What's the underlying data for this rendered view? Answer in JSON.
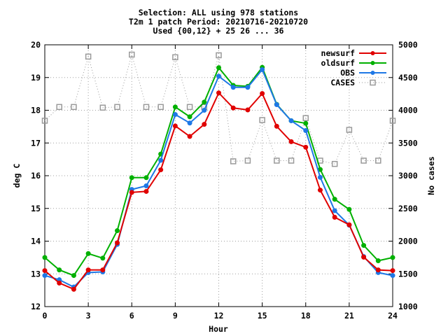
{
  "chart_data": {
    "type": "line",
    "title_lines": [
      "Selection: ALL using   978 stations",
      "T2m 1 patch   Period: 20210716-20210720",
      "Used {00,12} + 25 26 ... 36"
    ],
    "xlabel": "Hour",
    "ylabel": "deg C",
    "y2label": "No cases",
    "xlim": [
      0,
      24
    ],
    "ylim": [
      12,
      20
    ],
    "y2lim": [
      1000,
      5000
    ],
    "xticks": [
      "0",
      "3",
      "6",
      "9",
      "12",
      "15",
      "18",
      "21",
      "24"
    ],
    "yticks": [
      "12",
      "13",
      "14",
      "15",
      "16",
      "17",
      "18",
      "19",
      "20"
    ],
    "y2ticks": [
      "1000",
      "1500",
      "2000",
      "2500",
      "3000",
      "3500",
      "4000",
      "4500",
      "5000"
    ],
    "legend_position": "top-right",
    "x": [
      0,
      1,
      2,
      3,
      4,
      5,
      6,
      7,
      8,
      9,
      10,
      11,
      12,
      13,
      14,
      15,
      16,
      17,
      18,
      19,
      20,
      21,
      22,
      23,
      24
    ],
    "series": [
      {
        "name": "newsurf",
        "color": "#e00000",
        "marker": "filled-circle",
        "axis": "left",
        "values": [
          13.1,
          12.72,
          12.53,
          13.12,
          13.12,
          13.95,
          15.49,
          15.52,
          16.18,
          17.52,
          17.2,
          17.57,
          18.53,
          18.07,
          18.01,
          18.51,
          17.51,
          17.04,
          16.87,
          15.56,
          14.73,
          14.5,
          13.51,
          13.12,
          13.1
        ]
      },
      {
        "name": "oldsurf",
        "color": "#00b000",
        "marker": "filled-circle",
        "axis": "left",
        "values": [
          13.5,
          13.12,
          12.95,
          13.62,
          13.48,
          14.32,
          15.94,
          15.94,
          16.66,
          18.1,
          17.8,
          18.25,
          19.3,
          18.76,
          18.73,
          19.31,
          18.18,
          17.68,
          17.6,
          16.19,
          15.28,
          14.97,
          13.87,
          13.4,
          13.5
        ]
      },
      {
        "name": "OBS",
        "color": "#1e78e6",
        "marker": "filled-circle",
        "axis": "left",
        "values": [
          12.95,
          12.82,
          12.6,
          13.04,
          13.06,
          13.9,
          15.58,
          15.69,
          16.47,
          17.87,
          17.61,
          18.0,
          19.04,
          18.7,
          18.7,
          19.24,
          18.17,
          17.68,
          17.38,
          15.95,
          14.93,
          14.49,
          13.53,
          13.04,
          12.95
        ]
      },
      {
        "name": "CASES",
        "color": "#9a9a9a",
        "marker": "open-square",
        "axis": "right",
        "dashed": true,
        "values": [
          3840,
          4050,
          4050,
          4820,
          4040,
          4050,
          4850,
          4050,
          4050,
          4810,
          4050,
          4050,
          4840,
          3220,
          3230,
          3850,
          3230,
          3230,
          3880,
          3230,
          3180,
          3700,
          3230,
          3230,
          3840
        ]
      }
    ]
  }
}
